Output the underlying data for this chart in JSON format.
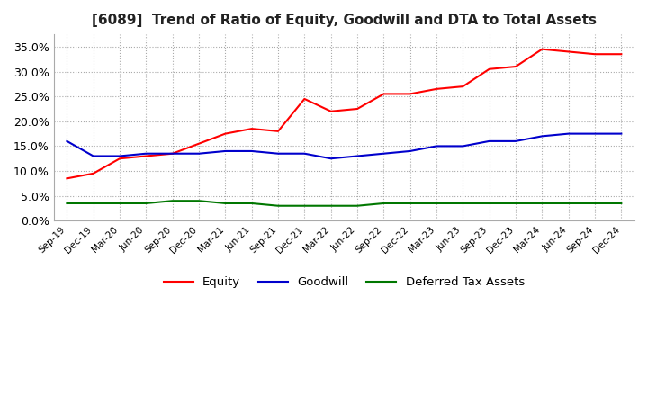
{
  "title": "[6089]  Trend of Ratio of Equity, Goodwill and DTA to Total Assets",
  "x_labels": [
    "Sep-19",
    "Dec-19",
    "Mar-20",
    "Jun-20",
    "Sep-20",
    "Dec-20",
    "Mar-21",
    "Jun-21",
    "Sep-21",
    "Dec-21",
    "Mar-22",
    "Jun-22",
    "Sep-22",
    "Dec-22",
    "Mar-23",
    "Jun-23",
    "Sep-23",
    "Dec-23",
    "Mar-24",
    "Jun-24",
    "Sep-24",
    "Dec-24"
  ],
  "equity": [
    8.5,
    9.5,
    12.5,
    13.0,
    13.5,
    15.5,
    17.5,
    18.5,
    18.0,
    24.5,
    22.0,
    22.5,
    25.5,
    25.5,
    26.5,
    27.0,
    30.5,
    31.0,
    34.5,
    34.0,
    33.5,
    33.5
  ],
  "goodwill": [
    16.0,
    13.0,
    13.0,
    13.5,
    13.5,
    13.5,
    14.0,
    14.0,
    13.5,
    13.5,
    12.5,
    13.0,
    13.5,
    14.0,
    15.0,
    15.0,
    16.0,
    16.0,
    17.0,
    17.5,
    17.5,
    17.5
  ],
  "dta": [
    3.5,
    3.5,
    3.5,
    3.5,
    4.0,
    4.0,
    3.5,
    3.5,
    3.0,
    3.0,
    3.0,
    3.0,
    3.5,
    3.5,
    3.5,
    3.5,
    3.5,
    3.5,
    3.5,
    3.5,
    3.5,
    3.5
  ],
  "equity_color": "#ff0000",
  "goodwill_color": "#0000cc",
  "dta_color": "#007700",
  "ylim": [
    0,
    37.5
  ],
  "yticks": [
    0.0,
    5.0,
    10.0,
    15.0,
    20.0,
    25.0,
    30.0,
    35.0
  ],
  "grid_color": "#aaaaaa",
  "background_color": "#ffffff",
  "title_fontsize": 11,
  "legend_labels": [
    "Equity",
    "Goodwill",
    "Deferred Tax Assets"
  ],
  "linewidth": 1.5
}
